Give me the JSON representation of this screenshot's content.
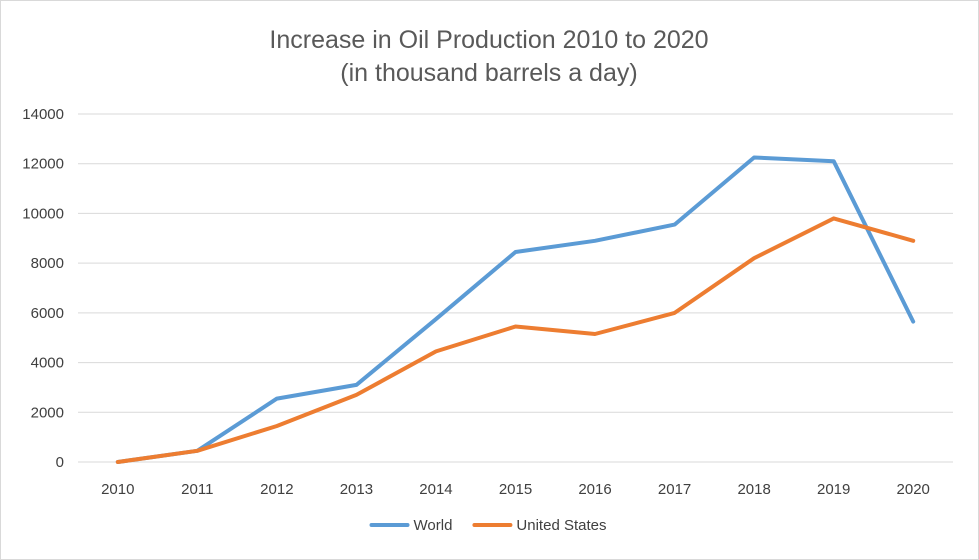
{
  "chart_data": {
    "type": "line",
    "title": "Increase in Oil Production 2010 to 2020",
    "subtitle": "(in thousand barrels a day)",
    "xlabel": "",
    "ylabel": "",
    "categories": [
      "2010",
      "2011",
      "2012",
      "2013",
      "2014",
      "2015",
      "2016",
      "2017",
      "2018",
      "2019",
      "2020"
    ],
    "y_ticks": [
      "0",
      "2000",
      "4000",
      "6000",
      "8000",
      "10000",
      "12000",
      "14000"
    ],
    "ylim": [
      0,
      14000
    ],
    "grid": true,
    "legend_position": "bottom",
    "series": [
      {
        "name": "World",
        "color": "#5b9bd5",
        "values": [
          0,
          450,
          2550,
          3100,
          5750,
          8450,
          8900,
          9550,
          12250,
          12100,
          5650
        ]
      },
      {
        "name": "United States",
        "color": "#ed7d31",
        "values": [
          0,
          450,
          1450,
          2700,
          4450,
          5450,
          5150,
          6000,
          8200,
          9800,
          8900
        ]
      }
    ]
  }
}
